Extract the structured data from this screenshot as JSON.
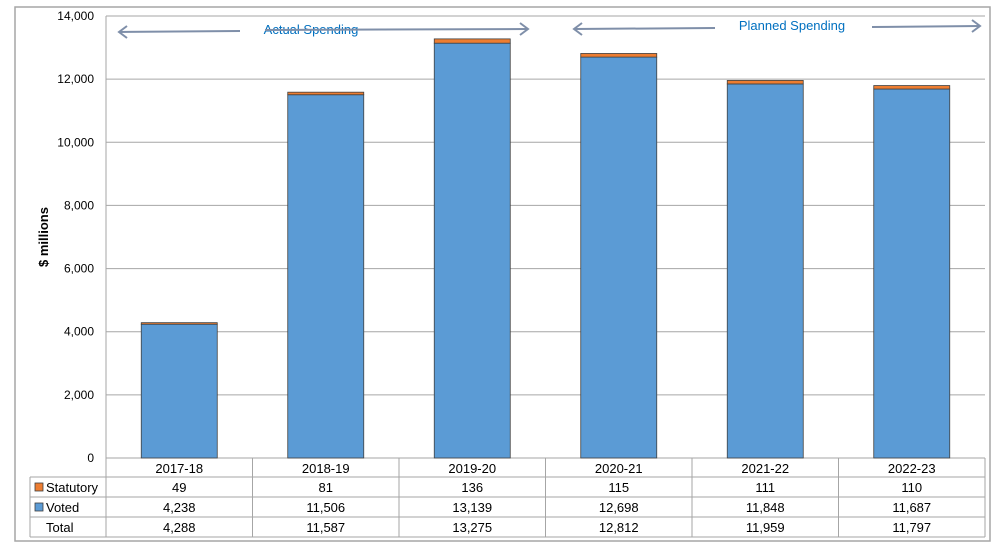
{
  "chart_data": {
    "type": "bar",
    "stacked": true,
    "title": "",
    "ylabel": "$ millions",
    "xlabel": "",
    "ylim": [
      0,
      14000
    ],
    "yticks": [
      0,
      2000,
      4000,
      6000,
      8000,
      10000,
      12000,
      14000
    ],
    "ytick_labels": [
      "0",
      "2,000",
      "4,000",
      "6,000",
      "8,000",
      "10,000",
      "12,000",
      "14,000"
    ],
    "grid": true,
    "categories": [
      "2017-18",
      "2018-19",
      "2019-20",
      "2020-21",
      "2021-22",
      "2022-23"
    ],
    "series": [
      {
        "name": "Voted",
        "color": "#5B9BD5",
        "values": [
          4238,
          11506,
          13139,
          12698,
          11848,
          11687
        ],
        "labels": [
          "4,238",
          "11,506",
          "13,139",
          "12,698",
          "11,848",
          "11,687"
        ]
      },
      {
        "name": "Statutory",
        "color": "#ED7D31",
        "values": [
          49,
          81,
          136,
          115,
          111,
          110
        ],
        "labels": [
          "49",
          "81",
          "136",
          "115",
          "111",
          "110"
        ]
      }
    ],
    "total": {
      "name": "Total",
      "values": [
        4288,
        11587,
        13275,
        12812,
        11959,
        11797
      ],
      "labels": [
        "4,288",
        "11,587",
        "13,275",
        "12,812",
        "11,959",
        "11,797"
      ]
    },
    "annotations": {
      "actual": "Actual Spending",
      "planned": "Planned Spending",
      "color": "#0070C0"
    }
  }
}
